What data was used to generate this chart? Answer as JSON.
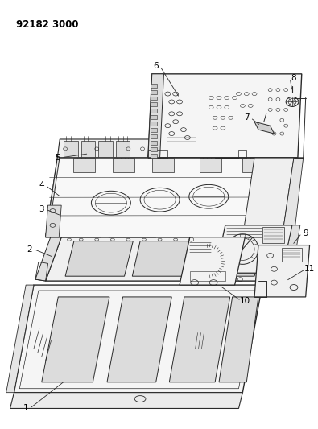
{
  "title": "92182 3000",
  "bg_color": "#ffffff",
  "line_color": "#2a2a2a",
  "label_color": "#000000",
  "title_fontsize": 8.5,
  "label_fontsize": 7.5,
  "fig_width": 3.95,
  "fig_height": 5.33,
  "dpi": 100
}
